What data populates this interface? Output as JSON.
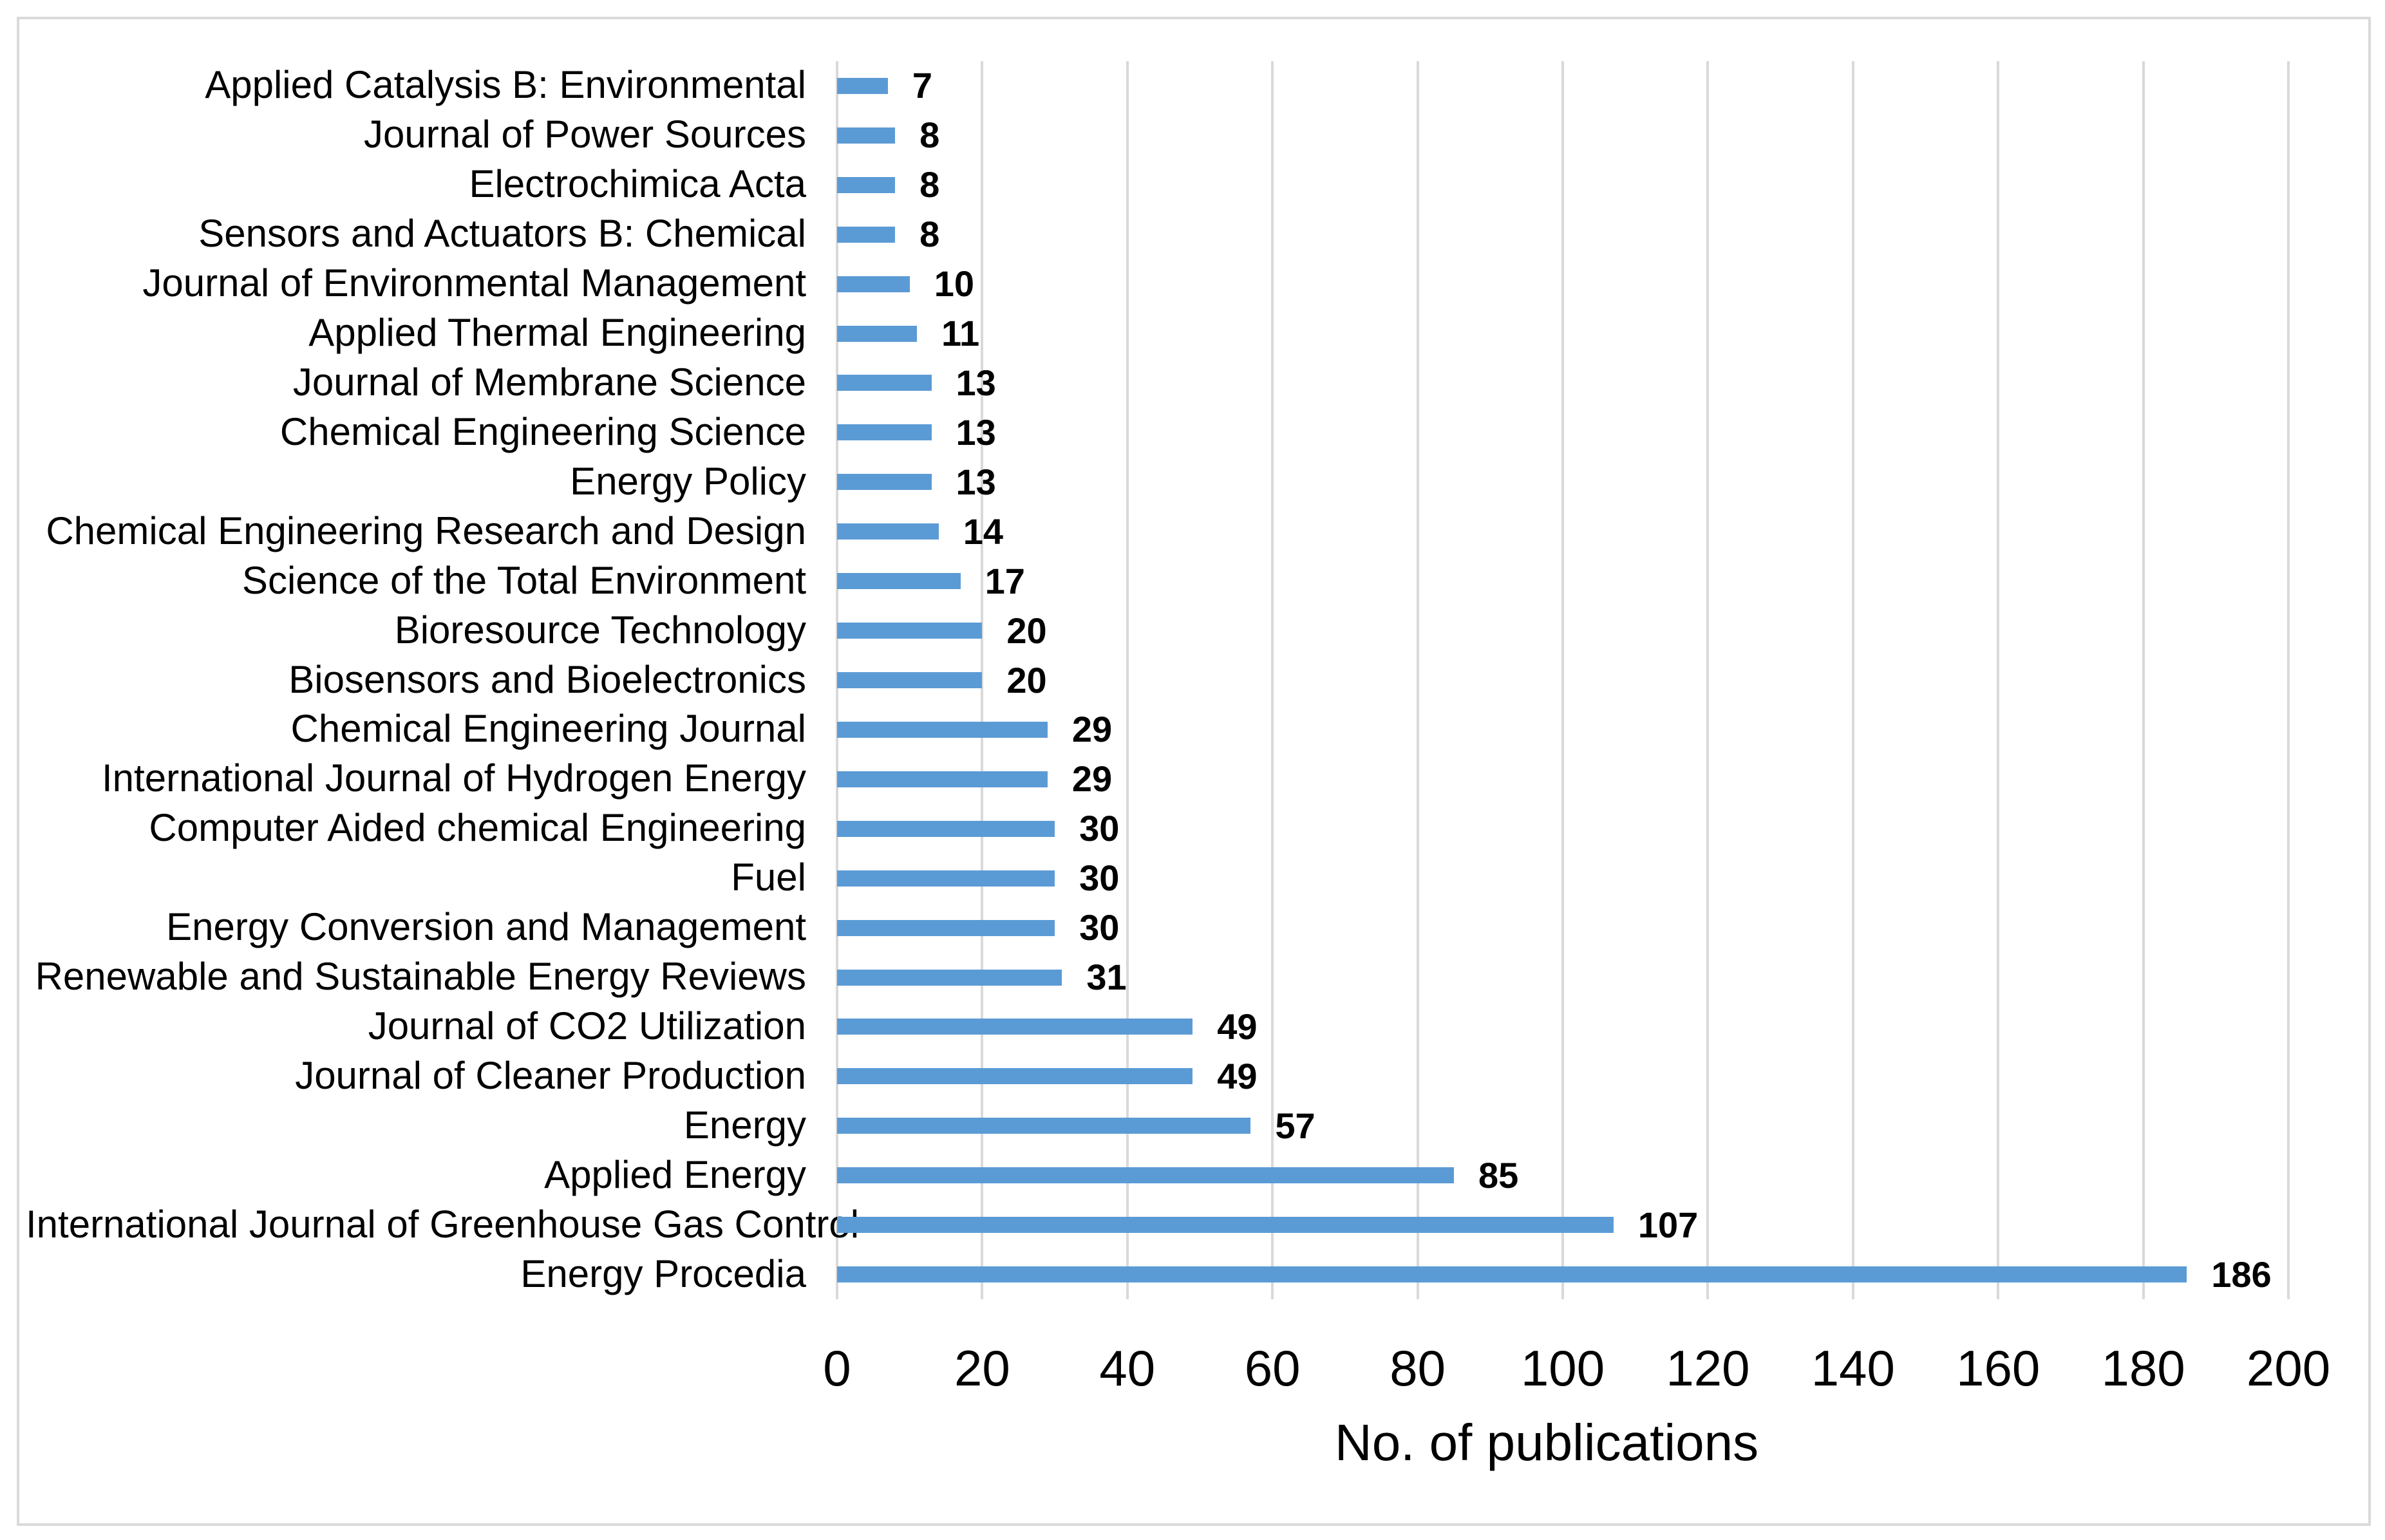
{
  "chart_data": {
    "type": "bar",
    "orientation": "horizontal",
    "title": "",
    "xlabel": "No. of publications",
    "ylabel": "",
    "xlim": [
      0,
      200
    ],
    "xticks": [
      0,
      20,
      40,
      60,
      80,
      100,
      120,
      140,
      160,
      180,
      200
    ],
    "grid": true,
    "legend": "none",
    "categories_top_to_bottom": [
      "Applied Catalysis B: Environmental",
      "Journal of Power Sources",
      "Electrochimica Acta",
      "Sensors and Actuators B: Chemical",
      "Journal of Environmental Management",
      "Applied Thermal Engineering",
      "Journal of Membrane Science",
      "Chemical Engineering Science",
      "Energy Policy",
      "Chemical Engineering Research and Design",
      "Science of the Total Environment",
      "Bioresource Technology",
      "Biosensors and Bioelectronics",
      "Chemical Engineering Journal",
      "International Journal of Hydrogen Energy",
      "Computer Aided chemical Engineering",
      "Fuel",
      "Energy Conversion and Management",
      "Renewable and Sustainable Energy Reviews",
      "Journal of CO2 Utilization",
      "Journal of Cleaner Production",
      "Energy",
      "Applied Energy",
      "International Journal of Greenhouse Gas Control",
      "Energy Procedia"
    ],
    "values": [
      7,
      8,
      8,
      8,
      10,
      11,
      13,
      13,
      13,
      14,
      17,
      20,
      20,
      29,
      29,
      30,
      30,
      30,
      31,
      49,
      49,
      57,
      85,
      107,
      186
    ],
    "data_labels_visible": true,
    "colors": {
      "bar": "#5B9BD5",
      "gridline": "#D9D9D9",
      "figure_border": "#DADADA",
      "text": "#000000",
      "background": "#FFFFFF"
    }
  }
}
